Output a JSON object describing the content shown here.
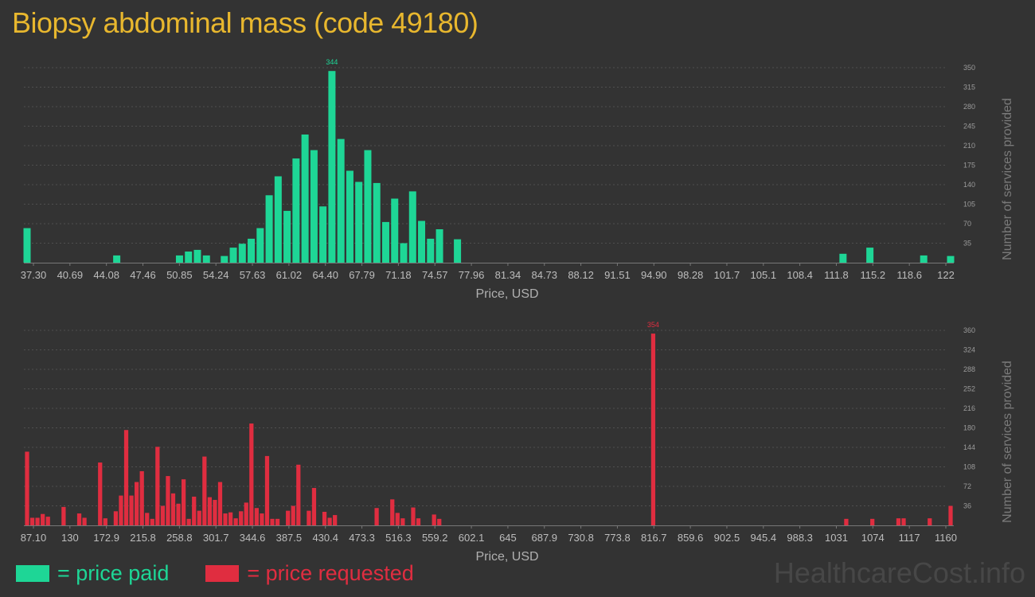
{
  "title": "Biopsy abdominal mass (code 49180)",
  "colors": {
    "title": "#e8b72e",
    "paid": "#1ed696",
    "requested": "#e02d40",
    "background": "#333333"
  },
  "chart_data": [
    {
      "type": "bar",
      "xlabel": "Price, USD",
      "ylabel": "Number of services provided",
      "ylim": [
        0,
        350
      ],
      "yticks": [
        "35",
        "70",
        "105",
        "140",
        "175",
        "210",
        "245",
        "280",
        "315",
        "350"
      ],
      "x_tick_labels": [
        "37.30",
        "40.69",
        "44.08",
        "47.46",
        "50.85",
        "54.24",
        "57.63",
        "61.02",
        "64.40",
        "67.79",
        "71.18",
        "74.57",
        "77.96",
        "81.34",
        "84.73",
        "88.12",
        "91.51",
        "94.90",
        "98.28",
        "101.7",
        "105.1",
        "108.4",
        "111.8",
        "115.2",
        "118.6",
        "122"
      ],
      "peak_label": "344",
      "grid": true,
      "series": [
        {
          "name": "price paid",
          "color": "#1ed696",
          "values": [
            62,
            0,
            0,
            0,
            0,
            0,
            0,
            0,
            0,
            0,
            13,
            0,
            0,
            0,
            0,
            0,
            0,
            13,
            20,
            23,
            13,
            0,
            12,
            27,
            34,
            43,
            62,
            121,
            155,
            93,
            187,
            230,
            202,
            101,
            344,
            222,
            165,
            145,
            202,
            143,
            73,
            115,
            35,
            128,
            75,
            43,
            60,
            0,
            42,
            0,
            0,
            0,
            0,
            0,
            0,
            0,
            0,
            0,
            0,
            0,
            0,
            0,
            0,
            0,
            0,
            0,
            0,
            0,
            0,
            0,
            0,
            0,
            0,
            0,
            0,
            0,
            0,
            0,
            0,
            0,
            0,
            0,
            0,
            0,
            0,
            0,
            0,
            0,
            0,
            0,
            0,
            16,
            0,
            0,
            27,
            0,
            0,
            0,
            0,
            0,
            13,
            0,
            0,
            12
          ]
        }
      ]
    },
    {
      "type": "bar",
      "xlabel": "Price, USD",
      "ylabel": "Number of services provided",
      "ylim": [
        0,
        360
      ],
      "yticks": [
        "36",
        "72",
        "108",
        "144",
        "180",
        "216",
        "252",
        "288",
        "324",
        "360"
      ],
      "x_tick_labels": [
        "87.10",
        "130",
        "172.9",
        "215.8",
        "258.8",
        "301.7",
        "344.6",
        "387.5",
        "430.4",
        "473.3",
        "516.3",
        "559.2",
        "602.1",
        "645",
        "687.9",
        "730.8",
        "773.8",
        "816.7",
        "859.6",
        "902.5",
        "945.4",
        "988.3",
        "1031",
        "1074",
        "1117",
        "1160"
      ],
      "peak_label": "354",
      "grid": true,
      "series": [
        {
          "name": "price requested",
          "color": "#e02d40",
          "values": [
            136,
            14,
            14,
            21,
            16,
            0,
            0,
            34,
            0,
            0,
            22,
            14,
            0,
            0,
            116,
            13,
            0,
            26,
            55,
            176,
            55,
            80,
            100,
            23,
            12,
            145,
            36,
            91,
            59,
            40,
            85,
            12,
            53,
            27,
            127,
            52,
            47,
            80,
            22,
            24,
            13,
            26,
            42,
            188,
            32,
            22,
            128,
            12,
            12,
            0,
            27,
            36,
            112,
            0,
            27,
            69,
            0,
            25,
            14,
            19,
            0,
            0,
            0,
            0,
            0,
            0,
            0,
            32,
            0,
            0,
            48,
            23,
            13,
            0,
            33,
            13,
            0,
            0,
            20,
            12,
            0,
            0,
            0,
            0,
            0,
            0,
            0,
            0,
            0,
            0,
            0,
            0,
            0,
            0,
            0,
            0,
            0,
            0,
            0,
            0,
            0,
            0,
            0,
            0,
            0,
            0,
            0,
            0,
            0,
            0,
            0,
            0,
            0,
            0,
            0,
            0,
            0,
            0,
            0,
            0,
            354,
            0,
            0,
            0,
            0,
            0,
            0,
            0,
            0,
            0,
            0,
            0,
            0,
            0,
            0,
            0,
            0,
            0,
            0,
            0,
            0,
            0,
            0,
            0,
            0,
            0,
            0,
            0,
            0,
            0,
            0,
            0,
            0,
            0,
            0,
            0,
            0,
            12,
            0,
            0,
            0,
            0,
            12,
            0,
            0,
            0,
            0,
            13,
            13,
            0,
            0,
            0,
            0,
            13,
            0,
            0,
            0,
            36
          ]
        }
      ]
    }
  ],
  "legend": {
    "paid_label": "= price paid",
    "requested_label": "= price requested"
  },
  "watermark": "HealthcareCost.info"
}
